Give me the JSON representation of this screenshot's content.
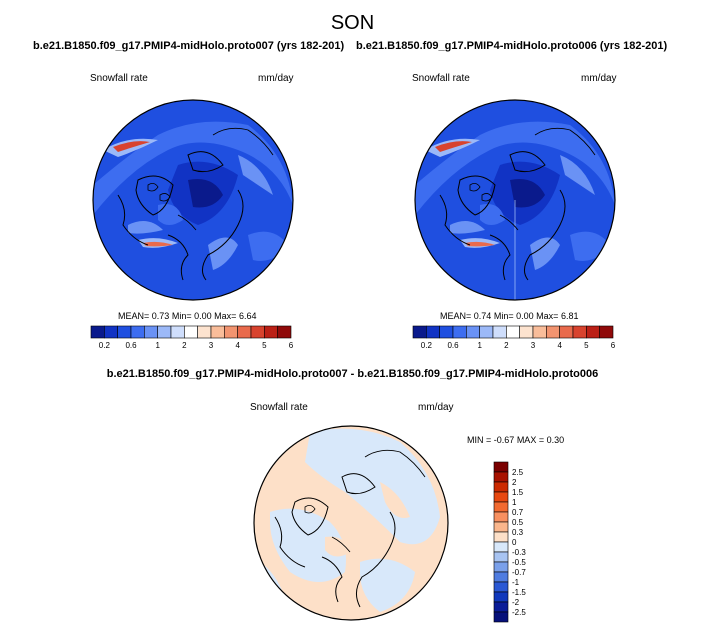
{
  "season": "SON",
  "panels": [
    {
      "case": "b.e21.B1850.f09_g17.PMIP4-midHolo.proto007 (yrs 182-201)",
      "variable": "Snowfall rate",
      "units": "mm/day",
      "mean_label": "MEAN=",
      "mean": "0.73",
      "min_label": "Min=",
      "min": "0.00",
      "max_label": "Max=",
      "max": "6.64"
    },
    {
      "case": "b.e21.B1850.f09_g17.PMIP4-midHolo.proto006 (yrs 182-201)",
      "variable": "Snowfall rate",
      "units": "mm/day",
      "mean_label": "MEAN=",
      "mean": "0.74",
      "min_label": "Min=",
      "min": "0.00",
      "max_label": "Max=",
      "max": "6.81"
    }
  ],
  "colorbar": {
    "labels": [
      "0.2",
      "0.6",
      "1",
      "2",
      "3",
      "4",
      "5",
      "6"
    ],
    "colors": [
      "#0a1a8c",
      "#1133c4",
      "#1f4fe0",
      "#3d6df0",
      "#6a92f5",
      "#9cb9f8",
      "#cfdefc",
      "#ffffff",
      "#fde3cf",
      "#f9bd9a",
      "#f29470",
      "#e96a4c",
      "#d8432e",
      "#bb2016",
      "#900a0a"
    ]
  },
  "difference": {
    "title": "b.e21.B1850.f09_g17.PMIP4-midHolo.proto007 - b.e21.B1850.f09_g17.PMIP4-midHolo.proto006",
    "variable": "Snowfall rate",
    "units": "mm/day",
    "min_label": "MIN =",
    "min": "-0.67",
    "max_label": "MAX =",
    "max": "0.30",
    "colorbar_labels": [
      "2.5",
      "2",
      "1.5",
      "1",
      "0.7",
      "0.5",
      "0.3",
      "0",
      "-0.3",
      "-0.5",
      "-0.7",
      "-1",
      "-1.5",
      "-2",
      "-2.5"
    ],
    "colorbar_colors": [
      "#7a0000",
      "#a81200",
      "#cc2a00",
      "#e84810",
      "#f26a30",
      "#f79060",
      "#fab68c",
      "#fde0c8",
      "#d8e8fa",
      "#a8c4f2",
      "#7aa0ea",
      "#4f7ce0",
      "#2a58d4",
      "#1038bc",
      "#0a1c98",
      "#06107a"
    ]
  }
}
